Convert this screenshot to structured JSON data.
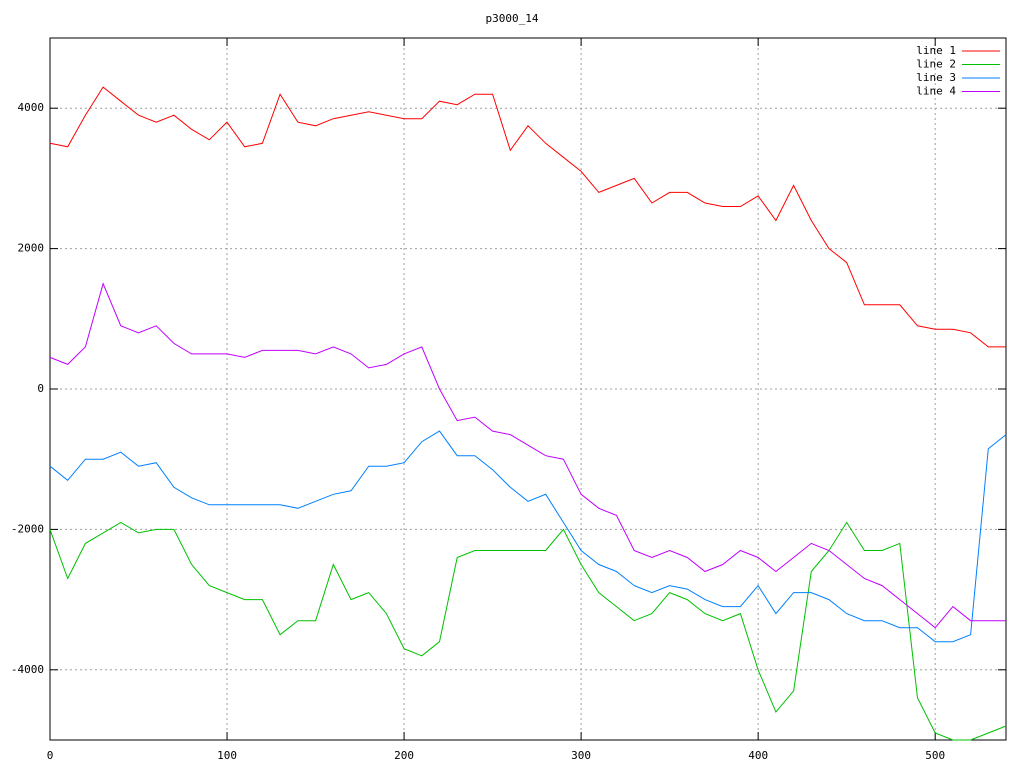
{
  "chart_data": {
    "type": "line",
    "title": "p3000_14",
    "x": [
      0,
      10,
      20,
      30,
      40,
      50,
      60,
      70,
      80,
      90,
      100,
      110,
      120,
      130,
      140,
      150,
      160,
      170,
      180,
      190,
      200,
      210,
      220,
      230,
      240,
      250,
      260,
      270,
      280,
      290,
      300,
      310,
      320,
      330,
      340,
      350,
      360,
      370,
      380,
      390,
      400,
      410,
      420,
      430,
      440,
      450,
      460,
      470,
      480,
      490,
      500,
      510,
      520,
      530,
      540
    ],
    "series": [
      {
        "name": "line 1",
        "color": "#ff0000",
        "values": [
          3500,
          3450,
          3900,
          4300,
          4100,
          3900,
          3800,
          3900,
          3700,
          3550,
          3800,
          3450,
          3500,
          4200,
          3800,
          3750,
          3850,
          3900,
          3950,
          3900,
          3850,
          3850,
          4100,
          4050,
          4200,
          4200,
          3400,
          3750,
          3500,
          3300,
          3100,
          2800,
          2900,
          3000,
          2650,
          2800,
          2800,
          2650,
          2600,
          2600,
          2750,
          2400,
          2900,
          2400,
          2000,
          1800,
          1200,
          1200,
          1200,
          900,
          850,
          850,
          800,
          600,
          600
        ]
      },
      {
        "name": "line 2",
        "color": "#00c000",
        "values": [
          -2000,
          -2700,
          -2200,
          -2050,
          -1900,
          -2050,
          -2000,
          -2000,
          -2500,
          -2800,
          -2900,
          -3000,
          -3000,
          -3500,
          -3300,
          -3300,
          -2500,
          -3000,
          -2900,
          -3200,
          -3700,
          -3800,
          -3600,
          -2400,
          -2300,
          -2300,
          -2300,
          -2300,
          -2300,
          -2000,
          -2500,
          -2900,
          -3100,
          -3300,
          -3200,
          -2900,
          -3000,
          -3200,
          -3300,
          -3200,
          -4000,
          -4600,
          -4300,
          -2600,
          -2300,
          -1900,
          -2300,
          -2300,
          -2200,
          -4400,
          -4900,
          -5000,
          -5000,
          -4900,
          -4800
        ]
      },
      {
        "name": "line 3",
        "color": "#0080ff",
        "values": [
          -1100,
          -1300,
          -1000,
          -1000,
          -900,
          -1100,
          -1050,
          -1400,
          -1550,
          -1650,
          -1650,
          -1650,
          -1650,
          -1650,
          -1700,
          -1600,
          -1500,
          -1450,
          -1100,
          -1100,
          -1050,
          -750,
          -600,
          -950,
          -950,
          -1150,
          -1400,
          -1600,
          -1500,
          -1900,
          -2300,
          -2500,
          -2600,
          -2800,
          -2900,
          -2800,
          -2850,
          -3000,
          -3100,
          -3100,
          -2800,
          -3200,
          -2900,
          -2900,
          -3000,
          -3200,
          -3300,
          -3300,
          -3400,
          -3400,
          -3600,
          -3600,
          -3500,
          -850,
          -650
        ]
      },
      {
        "name": "line 4",
        "color": "#c000ff",
        "values": [
          450,
          350,
          600,
          1500,
          900,
          800,
          900,
          650,
          500,
          500,
          500,
          450,
          550,
          550,
          550,
          500,
          600,
          500,
          300,
          350,
          500,
          600,
          0,
          -450,
          -400,
          -600,
          -650,
          -800,
          -950,
          -1000,
          -1500,
          -1700,
          -1800,
          -2300,
          -2400,
          -2300,
          -2400,
          -2600,
          -2500,
          -2300,
          -2400,
          -2600,
          -2400,
          -2200,
          -2300,
          -2500,
          -2700,
          -2800,
          -3000,
          -3200,
          -3400,
          -3100,
          -3300,
          -3300,
          -3300
        ]
      }
    ],
    "xlim": [
      0,
      540
    ],
    "xticks": [
      0,
      100,
      200,
      300,
      400,
      500
    ],
    "ylim": [
      -5000,
      5000
    ],
    "yticks": [
      -4000,
      -2000,
      0,
      2000,
      4000
    ],
    "grid": true,
    "legend": "top-right"
  }
}
